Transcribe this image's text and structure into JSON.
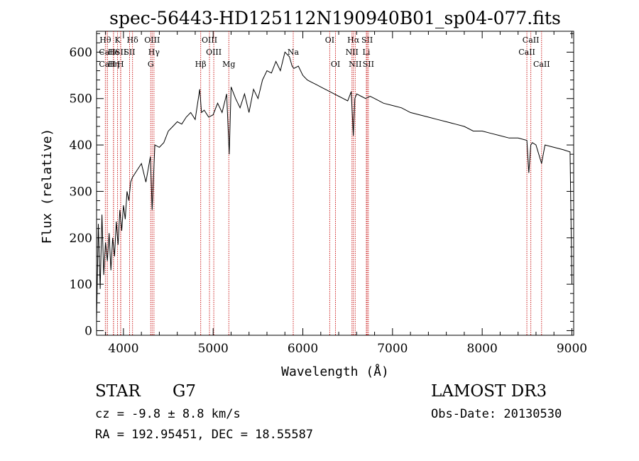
{
  "chart_data": {
    "type": "line",
    "title": "spec-56443-HD125112N190940B01_sp04-077.fits",
    "xlabel": "Wavelength (Å)",
    "ylabel": "Flux (relative)",
    "xlim": [
      3700,
      9020
    ],
    "ylim": [
      -10,
      645
    ],
    "x_ticks": [
      4000,
      5000,
      6000,
      7000,
      8000,
      9000
    ],
    "y_ticks": [
      0,
      100,
      200,
      300,
      400,
      500,
      600
    ],
    "grid": false,
    "line_color": "#000000",
    "marker_color": "#cc2222",
    "series": [
      {
        "x": [
          3700,
          3720,
          3740,
          3760,
          3780,
          3800,
          3820,
          3840,
          3860,
          3880,
          3900,
          3920,
          3940,
          3960,
          3980,
          4000,
          4020,
          4040,
          4060,
          4080,
          4100,
          4150,
          4200,
          4250,
          4300,
          4320,
          4350,
          4400,
          4450,
          4500,
          4550,
          4600,
          4650,
          4700,
          4750,
          4800,
          4850,
          4870,
          4900,
          4950,
          5000,
          5050,
          5100,
          5150,
          5180,
          5200,
          5250,
          5300,
          5350,
          5400,
          5450,
          5500,
          5550,
          5600,
          5650,
          5700,
          5750,
          5800,
          5850,
          5880,
          5900,
          5950,
          6000,
          6050,
          6100,
          6150,
          6200,
          6250,
          6300,
          6350,
          6400,
          6450,
          6500,
          6540,
          6563,
          6580,
          6600,
          6650,
          6700,
          6750,
          6800,
          6900,
          7000,
          7100,
          7200,
          7300,
          7400,
          7500,
          7600,
          7700,
          7800,
          7900,
          8000,
          8100,
          8200,
          8300,
          8400,
          8498,
          8520,
          8542,
          8560,
          8600,
          8662,
          8700,
          8800,
          8900,
          8980,
          9000
        ],
        "y": [
          20,
          230,
          90,
          250,
          120,
          190,
          150,
          210,
          130,
          200,
          160,
          235,
          185,
          260,
          215,
          270,
          240,
          300,
          280,
          320,
          330,
          345,
          360,
          320,
          375,
          260,
          400,
          395,
          405,
          430,
          440,
          450,
          445,
          460,
          470,
          455,
          520,
          470,
          475,
          460,
          465,
          490,
          470,
          510,
          380,
          525,
          500,
          480,
          510,
          470,
          520,
          500,
          540,
          560,
          555,
          580,
          560,
          600,
          590,
          570,
          565,
          570,
          550,
          540,
          535,
          530,
          525,
          520,
          515,
          510,
          505,
          500,
          495,
          515,
          420,
          500,
          510,
          505,
          500,
          505,
          500,
          490,
          485,
          480,
          470,
          465,
          460,
          455,
          450,
          445,
          440,
          430,
          430,
          425,
          420,
          415,
          415,
          410,
          340,
          400,
          405,
          400,
          360,
          400,
          395,
          390,
          385,
          100
        ]
      }
    ],
    "line_markers": [
      {
        "label": "Hθ",
        "x": 3798,
        "row": 0
      },
      {
        "label": "CaII",
        "x": 3820,
        "row": 1
      },
      {
        "label": "CaII",
        "x": 3820,
        "row": 2
      },
      {
        "label": "He",
        "x": 3889,
        "row": 1
      },
      {
        "label": "Hη",
        "x": 3889,
        "row": 2
      },
      {
        "label": "K",
        "x": 3934,
        "row": 0
      },
      {
        "label": "SII",
        "x": 3970,
        "row": 1
      },
      {
        "label": "H",
        "x": 3968,
        "row": 2
      },
      {
        "label": "Hδ",
        "x": 4101,
        "row": 0
      },
      {
        "label": "SII",
        "x": 4068,
        "row": 1
      },
      {
        "label": "OIII",
        "x": 4320,
        "row": 0
      },
      {
        "label": "Hγ",
        "x": 4340,
        "row": 1
      },
      {
        "label": "G",
        "x": 4304,
        "row": 2
      },
      {
        "label": "OIII",
        "x": 4959,
        "row": 0
      },
      {
        "label": "OIII",
        "x": 5007,
        "row": 1
      },
      {
        "label": "Hβ",
        "x": 4861,
        "row": 2
      },
      {
        "label": "Mg",
        "x": 5175,
        "row": 2
      },
      {
        "label": "Na",
        "x": 5893,
        "row": 1
      },
      {
        "label": "OI",
        "x": 6300,
        "row": 0
      },
      {
        "label": "OI",
        "x": 6364,
        "row": 2
      },
      {
        "label": "Hα",
        "x": 6563,
        "row": 0
      },
      {
        "label": "NII",
        "x": 6548,
        "row": 1
      },
      {
        "label": "NII",
        "x": 6584,
        "row": 2
      },
      {
        "label": "SII",
        "x": 6717,
        "row": 0
      },
      {
        "label": "Li",
        "x": 6708,
        "row": 1
      },
      {
        "label": "SII",
        "x": 6731,
        "row": 2
      },
      {
        "label": "CaII",
        "x": 8542,
        "row": 0
      },
      {
        "label": "CaII",
        "x": 8498,
        "row": 1
      },
      {
        "label": "CaII",
        "x": 8662,
        "row": 2
      }
    ]
  },
  "info": {
    "object_type": "STAR",
    "subclass": "G7",
    "survey": "LAMOST DR3",
    "cz_line": "cz = -9.8 ± 8.8 km/s",
    "obs_date_line": "Obs-Date: 20130530",
    "radec_line": "RA = 192.95451, DEC =  18.55587"
  }
}
